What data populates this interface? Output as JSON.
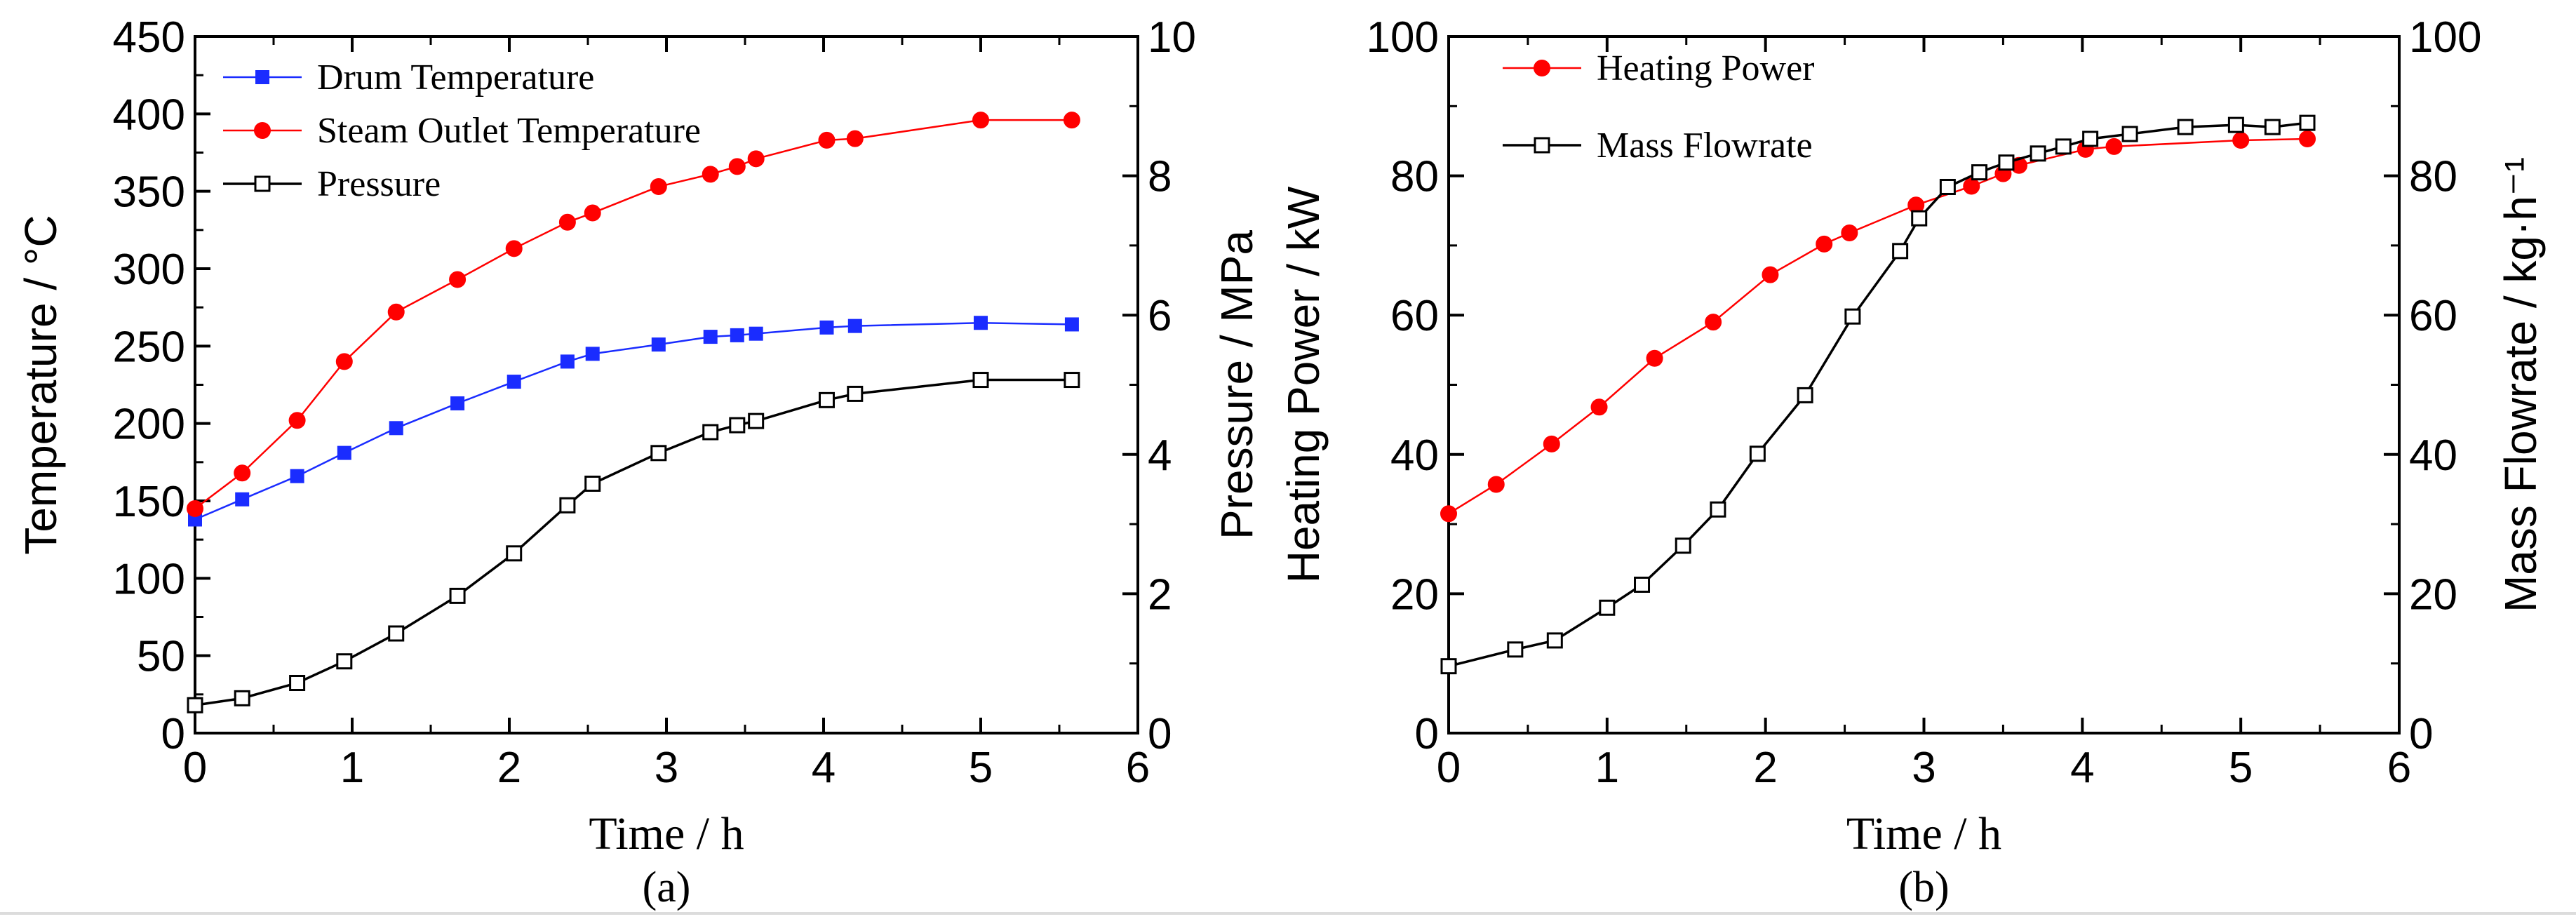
{
  "colors": {
    "blue": "#1a2cff",
    "red": "#ff0000",
    "black": "#000000"
  },
  "chart_data": [
    {
      "type": "line",
      "caption": "(a)",
      "xlabel": "Time / h",
      "ylabel": "Temperature / °C",
      "y2label": "Pressure / MPa",
      "xlim": [
        0,
        6
      ],
      "ylim": [
        0,
        450
      ],
      "y2lim": [
        0,
        10
      ],
      "xticks": [
        "0",
        "1",
        "2",
        "3",
        "4",
        "5",
        "6"
      ],
      "yticks": [
        "0",
        "50",
        "100",
        "150",
        "200",
        "250",
        "300",
        "350",
        "400",
        "450"
      ],
      "y2ticks": [
        "0",
        "2",
        "4",
        "6",
        "8",
        "10"
      ],
      "legend_position": "top-left",
      "series": [
        {
          "name": "Drum Temperature",
          "axis": "left",
          "color": "#1a2cff",
          "marker": "filled-square",
          "x": [
            0,
            0.3,
            0.65,
            0.95,
            1.28,
            1.67,
            2.03,
            2.37,
            2.53,
            2.95,
            3.28,
            3.45,
            3.57,
            4.02,
            4.2,
            5.0,
            5.58
          ],
          "y": [
            138,
            151,
            166,
            181,
            197,
            213,
            227,
            240,
            245,
            251,
            256,
            257,
            258,
            262,
            263,
            265,
            264
          ]
        },
        {
          "name": "Steam Outlet Temperature",
          "axis": "left",
          "color": "#ff0000",
          "marker": "filled-circle",
          "x": [
            0,
            0.3,
            0.65,
            0.95,
            1.28,
            1.67,
            2.03,
            2.37,
            2.53,
            2.95,
            3.28,
            3.45,
            3.57,
            4.02,
            4.2,
            5.0,
            5.58
          ],
          "y": [
            145,
            168,
            202,
            240,
            272,
            293,
            313,
            330,
            336,
            353,
            361,
            366,
            371,
            383,
            384,
            396,
            396
          ]
        },
        {
          "name": "Pressure",
          "axis": "right",
          "color": "#000000",
          "marker": "open-square",
          "x": [
            0,
            0.3,
            0.65,
            0.95,
            1.28,
            1.67,
            2.03,
            2.37,
            2.53,
            2.95,
            3.28,
            3.45,
            3.57,
            4.02,
            4.2,
            5.0,
            5.58
          ],
          "y": [
            0.4,
            0.5,
            0.72,
            1.03,
            1.43,
            1.97,
            2.58,
            3.27,
            3.58,
            4.02,
            4.32,
            4.42,
            4.48,
            4.78,
            4.87,
            5.07,
            5.07
          ]
        }
      ]
    },
    {
      "type": "line",
      "caption": "(b)",
      "xlabel": "Time / h",
      "ylabel": "Heating Power / kW",
      "y2label": "Mass Flowrate / kg·h⁻¹",
      "xlim": [
        0,
        6
      ],
      "ylim": [
        0,
        100
      ],
      "y2lim": [
        0,
        100
      ],
      "xticks": [
        "0",
        "1",
        "2",
        "3",
        "4",
        "5",
        "6"
      ],
      "yticks": [
        "0",
        "20",
        "40",
        "60",
        "80",
        "100"
      ],
      "y2ticks": [
        "0",
        "20",
        "40",
        "60",
        "80",
        "100"
      ],
      "legend_position": "top-left",
      "series": [
        {
          "name": "Heating Power",
          "axis": "left",
          "color": "#ff0000",
          "marker": "filled-circle",
          "x": [
            0,
            0.3,
            0.65,
            0.95,
            1.3,
            1.67,
            2.03,
            2.37,
            2.53,
            2.95,
            3.3,
            3.5,
            3.6,
            4.02,
            4.2,
            5.0,
            5.42
          ],
          "y": [
            31.5,
            35.7,
            41.5,
            46.8,
            53.8,
            59.0,
            65.8,
            70.2,
            71.8,
            75.8,
            78.5,
            80.3,
            81.5,
            83.8,
            84.2,
            85.1,
            85.3
          ]
        },
        {
          "name": "Mass Flowrate",
          "axis": "right",
          "color": "#000000",
          "marker": "open-square",
          "x": [
            0,
            0.42,
            0.67,
            1.0,
            1.22,
            1.48,
            1.7,
            1.95,
            2.25,
            2.55,
            2.85,
            2.97,
            3.15,
            3.35,
            3.52,
            3.72,
            3.88,
            4.05,
            4.3,
            4.65,
            4.97,
            5.2,
            5.42
          ],
          "y": [
            9.6,
            12,
            13.3,
            18,
            21.3,
            26.9,
            32.1,
            40.1,
            48.5,
            59.8,
            69.2,
            73.9,
            78.4,
            80.5,
            81.9,
            83.2,
            84.2,
            85.3,
            86.0,
            87.0,
            87.3,
            87.0,
            87.6
          ]
        }
      ]
    }
  ]
}
